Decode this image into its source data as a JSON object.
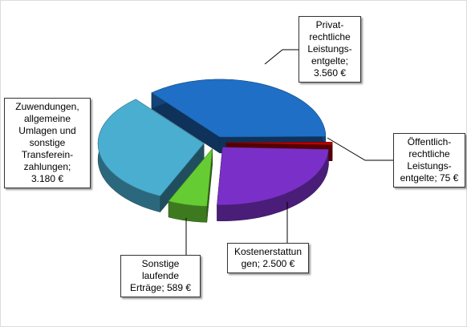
{
  "chart_data": {
    "type": "pie3d",
    "values": [
      3560,
      75,
      2500,
      589,
      3180
    ],
    "value_labels": [
      "Privat-\nrechtliche\nLeistungs-\nentgelte;\n3.560 €",
      "Öffentlich-\nrechtliche\nLeistungs-\nentgelte; 75 €",
      "Kostenerstattun\ngen; 2.500 €",
      "Sonstige\nlaufende\nErträge; 589 €",
      "Zuwendungen,\nallgemeine\nUmlagen und\nsonstige\nTransferein-\nzahlungen;\n3.180 €"
    ],
    "colors": [
      "#1f6fc6",
      "#c00000",
      "#7a30c8",
      "#66cc33",
      "#4aaed0"
    ]
  }
}
